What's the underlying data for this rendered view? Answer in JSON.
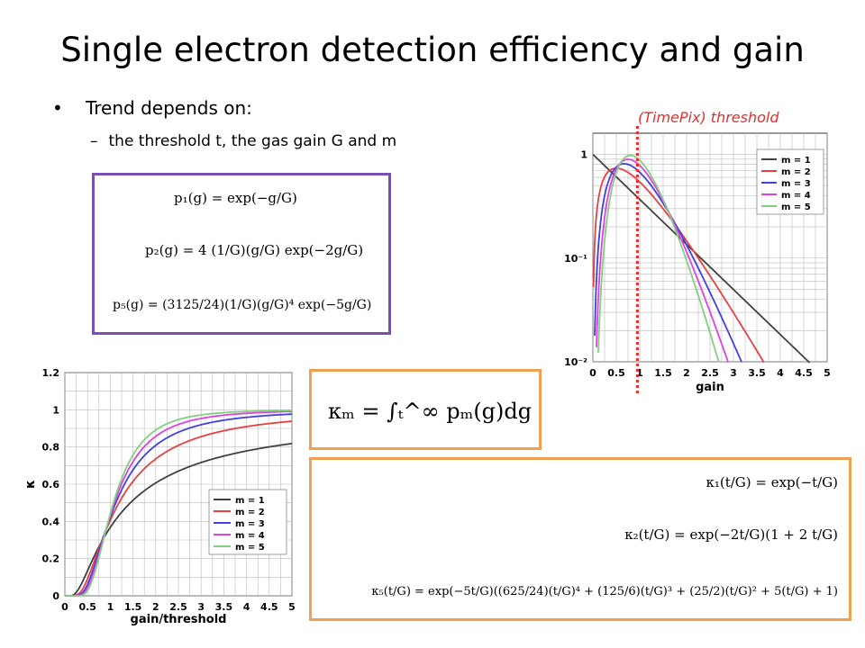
{
  "slide": {
    "title": "Single electron detection efficiency and gain",
    "bullet_main": "Trend depends on:",
    "bullet_sub": "the threshold t, the gas gain G and m",
    "bullet_marker": "•",
    "sub_marker": "–",
    "threshold_label": "(TimePix) threshold",
    "colors": {
      "purple_box": "#7a4fb5",
      "orange_box": "#f0a050",
      "threshold_line": "#e03030"
    }
  },
  "equations": {
    "p1": "p₁(g) = exp(−g/G)",
    "p2": "p₂(g) = 4 (1/G)(g/G) exp(−2g/G)",
    "p5": "p₅(g) = (3125/24)(1/G)(g/G)⁴ exp(−5g/G)",
    "kappa_m": "κₘ = ∫ₜ^∞ pₘ(g)dg",
    "kappa1": "κ₁(t/G) = exp(−t/G)",
    "kappa2": "κ₂(t/G) = exp(−2t/G)(1 + 2 t/G)",
    "kappa5": "κ₅(t/G) = exp(−5t/G)((625/24)(t/G)⁴ + (125/6)(t/G)³ + (25/2)(t/G)² + 5(t/G) + 1)"
  },
  "chart_data": [
    {
      "type": "line",
      "xlabel": "gain",
      "ylabel": "",
      "xlim": [
        0,
        5
      ],
      "ylim": [
        0.01,
        1.6
      ],
      "log_y": true,
      "grid": true,
      "legend_position": "top-right",
      "xticks": [
        "0",
        "0.5",
        "1",
        "1.5",
        "2",
        "2.5",
        "3",
        "3.5",
        "4",
        "4.5",
        "5"
      ],
      "yticks": [
        {
          "value": 1,
          "label": "1"
        },
        {
          "value": 0.1,
          "label": "10⁻¹"
        },
        {
          "value": 0.01,
          "label": "10⁻²"
        }
      ],
      "series": [
        {
          "name": "m = 1",
          "color": "#404040",
          "m": 1
        },
        {
          "name": "m = 2",
          "color": "#e84040",
          "m": 2
        },
        {
          "name": "m = 3",
          "color": "#4040e0",
          "m": 3
        },
        {
          "name": "m = 4",
          "color": "#e040e0",
          "m": 4
        },
        {
          "name": "m = 5",
          "color": "#80d080",
          "m": 5
        }
      ],
      "threshold_x": 0.95
    },
    {
      "type": "line",
      "xlabel": "gain/threshold",
      "ylabel": "κ",
      "xlim": [
        0,
        5
      ],
      "ylim": [
        0,
        1.2
      ],
      "grid": true,
      "legend_position": "bottom-right",
      "xticks": [
        "0",
        "0.5",
        "1",
        "1.5",
        "2",
        "2.5",
        "3",
        "3.5",
        "4",
        "4.5",
        "5"
      ],
      "yticks": [
        "0",
        "0.2",
        "0.4",
        "0.6",
        "0.8",
        "1",
        "1.2"
      ],
      "series": [
        {
          "name": "m = 1",
          "color": "#404040",
          "m": 1
        },
        {
          "name": "m = 2",
          "color": "#e84040",
          "m": 2
        },
        {
          "name": "m = 3",
          "color": "#4040e0",
          "m": 3
        },
        {
          "name": "m = 4",
          "color": "#e040e0",
          "m": 4
        },
        {
          "name": "m = 5",
          "color": "#80d080",
          "m": 5
        }
      ]
    }
  ]
}
